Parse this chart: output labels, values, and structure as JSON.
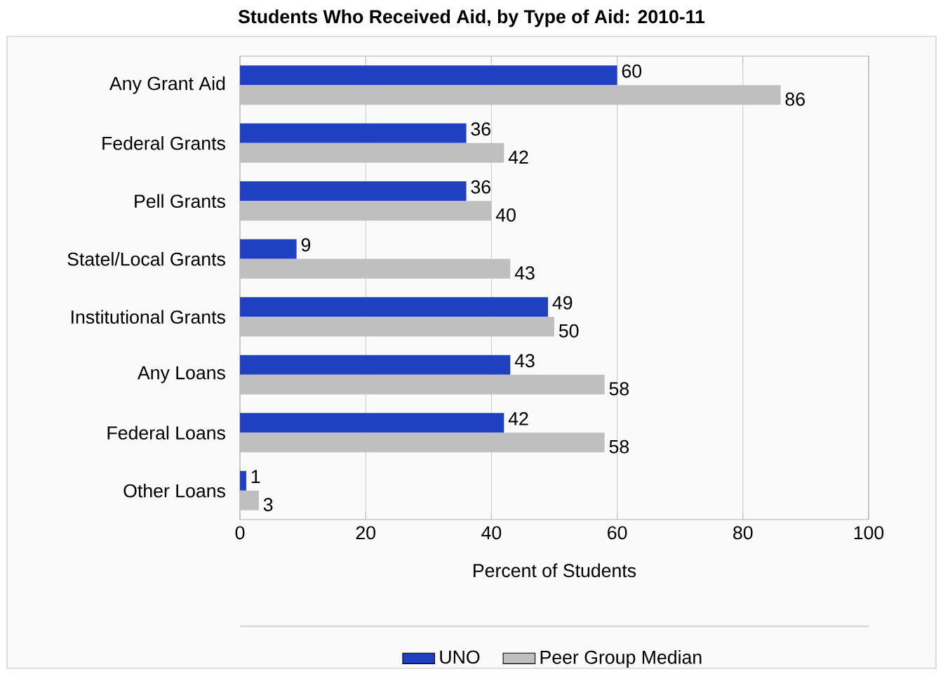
{
  "chart_data": {
    "type": "bar",
    "orientation": "horizontal",
    "title": "Students Who Received Aid, by Type of Aid: 2010-11",
    "xlabel": "Percent of Students",
    "categories": [
      "Any Grant Aid",
      "Federal Grants",
      "Pell Grants",
      "Statel/Local Grants",
      "Institutional Grants",
      "Any Loans",
      "Federal Loans",
      "Other Loans"
    ],
    "series": [
      {
        "name": "UNO",
        "color": "#1f40c0",
        "values": [
          60,
          36,
          36,
          9,
          49,
          43,
          42,
          1
        ]
      },
      {
        "name": "Peer Group Median",
        "color": "#bfbfbf",
        "values": [
          86,
          42,
          40,
          43,
          50,
          58,
          58,
          3
        ]
      }
    ],
    "xlim": [
      0,
      100
    ],
    "xticks": [
      0,
      20,
      40,
      60,
      80,
      100
    ],
    "grid": "x",
    "legend": "bottom",
    "data_labels": true
  }
}
